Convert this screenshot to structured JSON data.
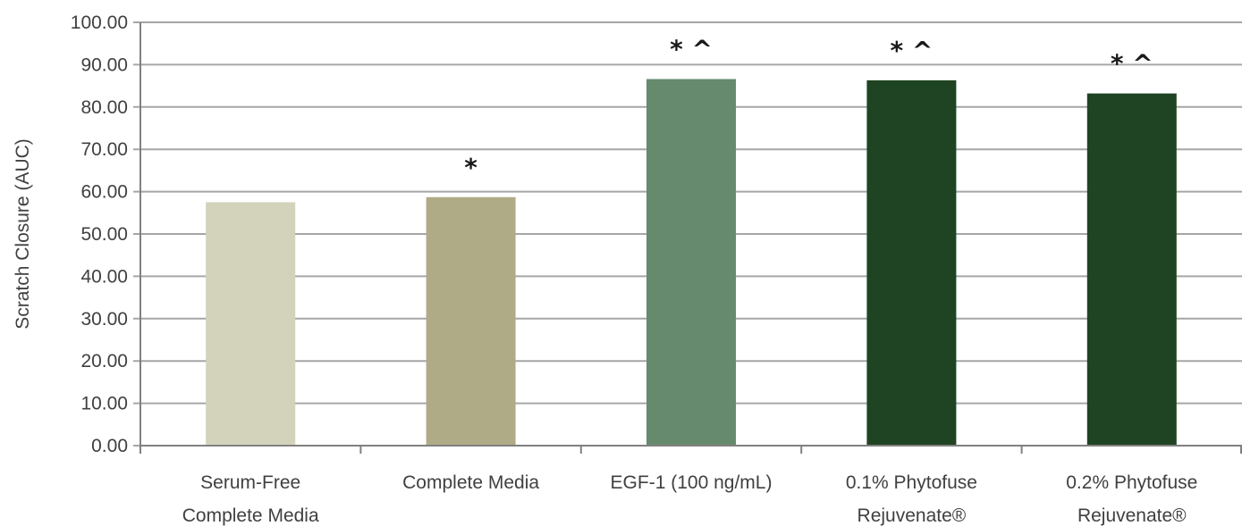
{
  "chart_data": {
    "type": "bar",
    "categories": [
      [
        "Serum-Free",
        "Complete Media"
      ],
      [
        "Complete Media"
      ],
      [
        "EGF-1 (100 ng/mL)"
      ],
      [
        "0.1% Phytofuse",
        "Rejuvenate®"
      ],
      [
        "0.2% Phytofuse",
        "Rejuvenate®"
      ]
    ],
    "values": [
      57.5,
      58.7,
      86.6,
      86.3,
      83.2
    ],
    "bar_colors": [
      "#d3d3bc",
      "#b0ab87",
      "#668a6e",
      "#1f4423",
      "#1f4423"
    ],
    "annotations": [
      "",
      "*",
      "*^",
      "*^",
      "*^"
    ],
    "ylabel": "Scratch Closure (AUC)",
    "ylim": [
      0,
      100
    ],
    "yticks": [
      "0.00",
      "10.00",
      "20.00",
      "30.00",
      "40.00",
      "50.00",
      "60.00",
      "70.00",
      "80.00",
      "90.00",
      "100.00"
    ],
    "grid": true,
    "gridline_color": "#a6a6a6"
  }
}
